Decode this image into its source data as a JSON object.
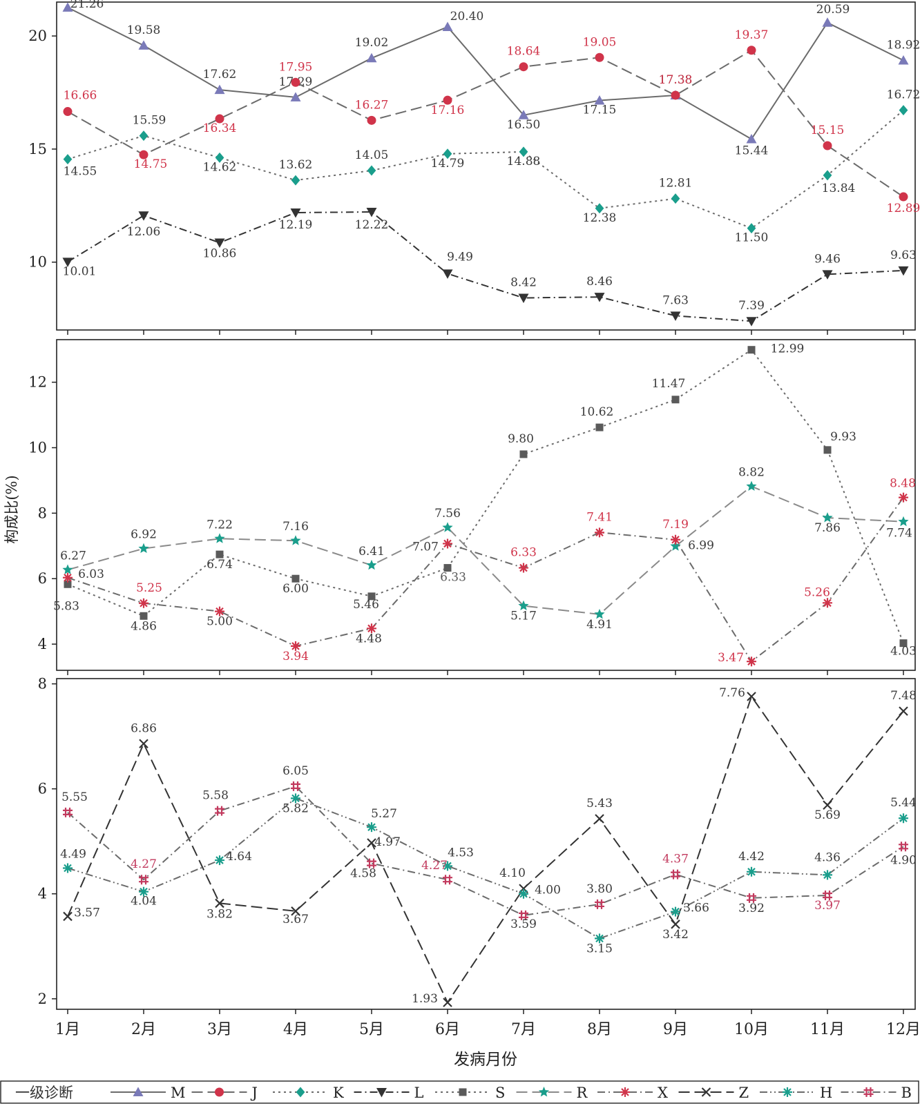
{
  "figure": {
    "y_axis_title": "构成比(%)",
    "x_axis_title": "发病月份",
    "legend_title": "一级诊断"
  },
  "chart_data": [
    {
      "type": "line",
      "panel": "top",
      "categories": [
        "1月",
        "2月",
        "3月",
        "4月",
        "5月",
        "6月",
        "7月",
        "8月",
        "9月",
        "10月",
        "11月",
        "12月"
      ],
      "ylim": [
        7.0,
        21.5
      ],
      "yticks": [
        10,
        15,
        20
      ],
      "grid": false,
      "series": [
        {
          "name": "M",
          "values": [
            21.26,
            19.58,
            17.62,
            17.29,
            19.02,
            20.4,
            16.5,
            17.15,
            17.38,
            15.44,
            20.59,
            18.92
          ],
          "color": "#6b6b6b",
          "marker_color": "#7a7ab8",
          "dash": "solid",
          "marker": "triangle-up"
        },
        {
          "name": "J",
          "values": [
            16.66,
            14.75,
            16.34,
            17.95,
            16.27,
            17.16,
            18.64,
            19.05,
            17.38,
            19.37,
            15.15,
            12.89
          ],
          "color": "#6b6b6b",
          "marker_color": "#d0344a",
          "label_color": "#d0344a",
          "dash": "long-dash",
          "marker": "circle"
        },
        {
          "name": "K",
          "values": [
            14.55,
            15.59,
            14.62,
            13.62,
            14.05,
            14.79,
            14.88,
            12.38,
            12.81,
            11.5,
            13.84,
            16.72
          ],
          "color": "#6b6b6b",
          "marker_color": "#1a9e8c",
          "dash": "dot",
          "marker": "diamond"
        },
        {
          "name": "L",
          "values": [
            10.01,
            12.06,
            10.86,
            12.19,
            12.22,
            9.49,
            8.42,
            8.46,
            7.63,
            7.39,
            9.46,
            9.63
          ],
          "color": "#333333",
          "marker_color": "#333333",
          "dash": "dash-dot",
          "marker": "triangle-down"
        }
      ]
    },
    {
      "type": "line",
      "panel": "middle",
      "categories": [
        "1月",
        "2月",
        "3月",
        "4月",
        "5月",
        "6月",
        "7月",
        "8月",
        "9月",
        "10月",
        "11月",
        "12月"
      ],
      "ylim": [
        3.2,
        13.3
      ],
      "yticks": [
        4,
        6,
        8,
        10,
        12
      ],
      "grid": false,
      "series": [
        {
          "name": "S",
          "values": [
            5.83,
            4.86,
            6.74,
            6.0,
            5.46,
            6.33,
            9.8,
            10.62,
            11.47,
            12.99,
            9.93,
            4.03
          ],
          "color": "#6b6b6b",
          "marker_color": "#5a5a5a",
          "dash": "dot",
          "marker": "square"
        },
        {
          "name": "R",
          "values": [
            6.27,
            6.92,
            7.22,
            7.16,
            6.41,
            7.56,
            5.17,
            4.91,
            6.99,
            8.82,
            7.86,
            7.74
          ],
          "color": "#8a8a8a",
          "marker_color": "#1a9e8c",
          "dash": "long-dash",
          "marker": "star"
        },
        {
          "name": "X",
          "values": [
            6.03,
            5.25,
            5.0,
            3.94,
            4.48,
            7.07,
            6.33,
            7.41,
            7.19,
            3.47,
            5.26,
            8.48
          ],
          "color": "#6b6b6b",
          "marker_color": "#d0344a",
          "dash": "dash-dot",
          "marker": "asterisk"
        }
      ]
    },
    {
      "type": "line",
      "panel": "bottom",
      "categories": [
        "1月",
        "2月",
        "3月",
        "4月",
        "5月",
        "6月",
        "7月",
        "8月",
        "9月",
        "10月",
        "11月",
        "12月"
      ],
      "ylim": [
        1.8,
        8.1
      ],
      "yticks": [
        2,
        4,
        6,
        8
      ],
      "grid": false,
      "xlabel": "发病月份",
      "series": [
        {
          "name": "Z",
          "values": [
            3.57,
            6.86,
            3.82,
            3.67,
            4.97,
            1.93,
            4.1,
            5.43,
            3.42,
            7.76,
            5.69,
            7.48
          ],
          "color": "#333333",
          "marker_color": "#333333",
          "dash": "long-dash",
          "marker": "x"
        },
        {
          "name": "H",
          "values": [
            4.49,
            4.04,
            4.64,
            5.82,
            5.27,
            4.53,
            4.0,
            3.15,
            3.66,
            4.42,
            4.36,
            5.44
          ],
          "color": "#6b6b6b",
          "marker_color": "#1a9e8c",
          "dash": "dash-dot-dot",
          "marker": "asterisk"
        },
        {
          "name": "B",
          "values": [
            5.55,
            4.27,
            5.58,
            6.05,
            4.58,
            4.27,
            3.59,
            3.8,
            4.37,
            3.92,
            3.97,
            4.9
          ],
          "color": "#6b6b6b",
          "marker_color": "#c23a5e",
          "dash": "dash-dot",
          "marker": "hash"
        }
      ]
    }
  ],
  "legend": {
    "title": "一级诊断",
    "items": [
      "M",
      "J",
      "K",
      "L",
      "S",
      "R",
      "X",
      "Z",
      "H",
      "B"
    ]
  }
}
